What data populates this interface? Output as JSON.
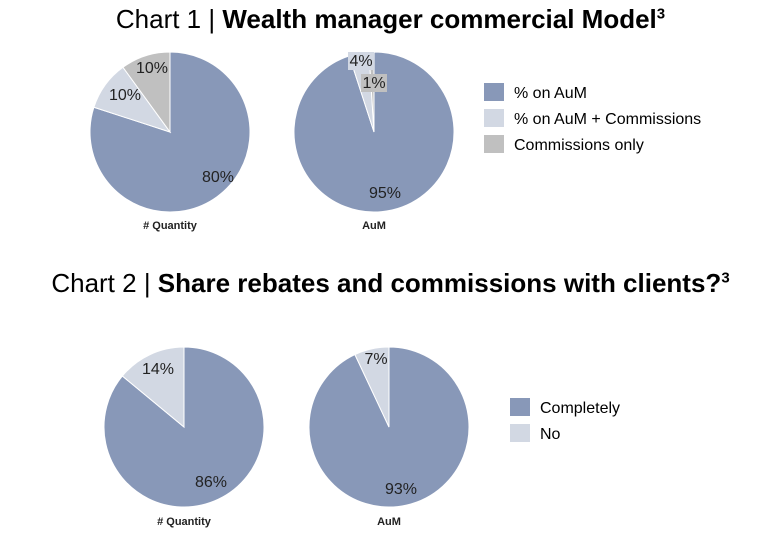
{
  "chart_data": [
    {
      "type": "pie",
      "title_prefix": "Chart 1 | ",
      "title_main": "Wealth manager commercial Model",
      "title_sup": "3",
      "legend": [
        "% on AuM",
        "% on AuM + Commissions",
        "Commissions only"
      ],
      "colors": [
        "#8898b8",
        "#d2d8e3",
        "#c0c0c0"
      ],
      "pies": [
        {
          "caption": "# Quantity",
          "values": [
            80,
            10,
            10
          ],
          "labels": [
            "80%",
            "10%",
            "10%"
          ]
        },
        {
          "caption": "AuM",
          "values": [
            95,
            4,
            1
          ],
          "labels": [
            "95%",
            "4%",
            "1%"
          ]
        }
      ]
    },
    {
      "type": "pie",
      "title_prefix": "Chart 2 | ",
      "title_main": "Share rebates and commissions with clients?",
      "title_sup": "3",
      "legend": [
        "Completely",
        "No"
      ],
      "colors": [
        "#8898b8",
        "#d2d8e3"
      ],
      "pies": [
        {
          "caption": "# Quantity",
          "values": [
            86,
            14
          ],
          "labels": [
            "86%",
            "14%"
          ]
        },
        {
          "caption": "AuM",
          "values": [
            93,
            7
          ],
          "labels": [
            "93%",
            "7%"
          ]
        }
      ]
    }
  ]
}
